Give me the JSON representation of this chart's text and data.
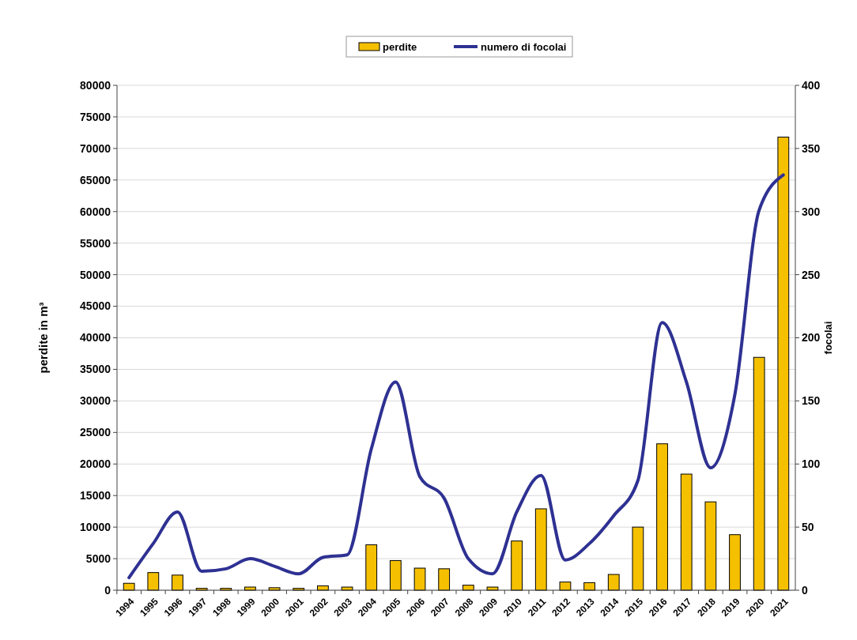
{
  "chart_data": {
    "type": "bar",
    "categories": [
      "1994",
      "1995",
      "1996",
      "1997",
      "1998",
      "1999",
      "2000",
      "2001",
      "2002",
      "2003",
      "2004",
      "2005",
      "2006",
      "2007",
      "2008",
      "2009",
      "2010",
      "2011",
      "2012",
      "2013",
      "2014",
      "2015",
      "2016",
      "2017",
      "2018",
      "2019",
      "2020",
      "2021"
    ],
    "series": [
      {
        "name": "perdite",
        "color": "#f5c000",
        "values": [
          1100,
          2800,
          2400,
          300,
          300,
          500,
          400,
          300,
          700,
          500,
          7200,
          4700,
          3500,
          3400,
          800,
          500,
          7800,
          12900,
          1300,
          1200,
          2500,
          10000,
          23200,
          18400,
          14000,
          8800,
          36900,
          71800
        ]
      },
      {
        "name": "numero di focolai",
        "type": "line",
        "axis": "y2",
        "color": "#2e3192",
        "line_style": "solid",
        "values": [
          10,
          37,
          62,
          15,
          17,
          25,
          19,
          13,
          26,
          28,
          112,
          165,
          90,
          73,
          25,
          13,
          62,
          91,
          24,
          37,
          59,
          87,
          212,
          165,
          97,
          155,
          301,
          329
        ]
      }
    ],
    "ylabel": "perdite in m³",
    "y2label": "focolai",
    "ylim": [
      0,
      80000
    ],
    "yticks": [
      0,
      5000,
      10000,
      15000,
      20000,
      25000,
      30000,
      35000,
      40000,
      45000,
      50000,
      55000,
      60000,
      65000,
      70000,
      75000,
      80000
    ],
    "y2lim": [
      0,
      400
    ],
    "y2ticks": [
      0,
      50,
      100,
      150,
      200,
      250,
      300,
      350,
      400
    ],
    "grid": "y",
    "legend": "top",
    "marker": "none"
  }
}
